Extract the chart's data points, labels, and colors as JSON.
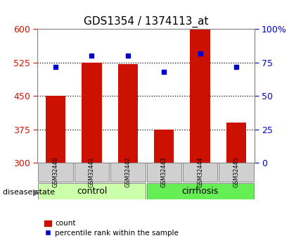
{
  "title": "GDS1354 / 1374113_at",
  "samples": [
    "GSM32440",
    "GSM32441",
    "GSM32442",
    "GSM32443",
    "GSM32444",
    "GSM32445"
  ],
  "counts": [
    451,
    525,
    522,
    375,
    600,
    390
  ],
  "percentiles": [
    72,
    80,
    80,
    68,
    82,
    72
  ],
  "groups": [
    "control",
    "control",
    "control",
    "cirrhosis",
    "cirrhosis",
    "cirrhosis"
  ],
  "ylim_left": [
    300,
    600
  ],
  "ylim_right": [
    0,
    100
  ],
  "yticks_left": [
    300,
    375,
    450,
    525,
    600
  ],
  "yticks_right": [
    0,
    25,
    50,
    75,
    100
  ],
  "hlines": [
    375,
    450,
    525
  ],
  "bar_color": "#cc1100",
  "dot_color": "#0000cc",
  "background_color": "#ffffff",
  "left_tick_color": "#cc1100",
  "right_tick_color": "#0000cc",
  "control_color": "#ccffaa",
  "cirrhosis_color": "#66ee55",
  "sample_box_color": "#d0d0d0",
  "legend_count": "count",
  "legend_pct": "percentile rank within the sample",
  "disease_state_label": "disease state"
}
